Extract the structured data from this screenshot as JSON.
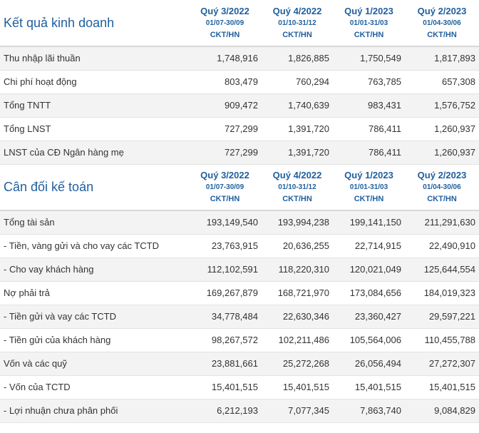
{
  "sections": [
    {
      "title": "Kết quả kinh doanh",
      "periods": [
        {
          "quarter": "Quý 3/2022",
          "range": "01/07-30/09",
          "basis": "CKT/HN"
        },
        {
          "quarter": "Quý 4/2022",
          "range": "01/10-31/12",
          "basis": "CKT/HN"
        },
        {
          "quarter": "Quý 1/2023",
          "range": "01/01-31/03",
          "basis": "CKT/HN"
        },
        {
          "quarter": "Quý 2/2023",
          "range": "01/04-30/06",
          "basis": "CKT/HN"
        }
      ],
      "rows": [
        {
          "label": "Thu nhập lãi thuần",
          "values": [
            "1,748,916",
            "1,826,885",
            "1,750,549",
            "1,817,893"
          ]
        },
        {
          "label": "Chi phí hoạt động",
          "values": [
            "803,479",
            "760,294",
            "763,785",
            "657,308"
          ]
        },
        {
          "label": "Tổng TNTT",
          "values": [
            "909,472",
            "1,740,639",
            "983,431",
            "1,576,752"
          ]
        },
        {
          "label": "Tổng LNST",
          "values": [
            "727,299",
            "1,391,720",
            "786,411",
            "1,260,937"
          ]
        },
        {
          "label": "LNST của CĐ Ngân hàng mẹ",
          "values": [
            "727,299",
            "1,391,720",
            "786,411",
            "1,260,937"
          ]
        }
      ]
    },
    {
      "title": "Cân đối kế toán",
      "periods": [
        {
          "quarter": "Quý 3/2022",
          "range": "01/07-30/09",
          "basis": "CKT/HN"
        },
        {
          "quarter": "Quý 4/2022",
          "range": "01/10-31/12",
          "basis": "CKT/HN"
        },
        {
          "quarter": "Quý 1/2023",
          "range": "01/01-31/03",
          "basis": "CKT/HN"
        },
        {
          "quarter": "Quý 2/2023",
          "range": "01/04-30/06",
          "basis": "CKT/HN"
        }
      ],
      "rows": [
        {
          "label": "Tổng tài sản",
          "values": [
            "193,149,540",
            "193,994,238",
            "199,141,150",
            "211,291,630"
          ]
        },
        {
          "label": "- Tiền, vàng gửi và cho vay các TCTD",
          "values": [
            "23,763,915",
            "20,636,255",
            "22,714,915",
            "22,490,910"
          ]
        },
        {
          "label": "- Cho vay khách hàng",
          "values": [
            "112,102,591",
            "118,220,310",
            "120,021,049",
            "125,644,554"
          ]
        },
        {
          "label": "Nợ phải trả",
          "values": [
            "169,267,879",
            "168,721,970",
            "173,084,656",
            "184,019,323"
          ]
        },
        {
          "label": "- Tiền gửi và vay các TCTD",
          "values": [
            "34,778,484",
            "22,630,346",
            "23,360,427",
            "29,597,221"
          ]
        },
        {
          "label": "- Tiền gửi của khách hàng",
          "values": [
            "98,267,572",
            "102,211,486",
            "105,564,006",
            "110,455,788"
          ]
        },
        {
          "label": "Vốn và các quỹ",
          "values": [
            "23,881,661",
            "25,272,268",
            "26,056,494",
            "27,272,307"
          ]
        },
        {
          "label": "- Vốn của TCTD",
          "values": [
            "15,401,515",
            "15,401,515",
            "15,401,515",
            "15,401,515"
          ]
        },
        {
          "label": "- Lợi nhuận chưa phân phối",
          "values": [
            "6,212,193",
            "7,077,345",
            "7,863,740",
            "9,084,829"
          ]
        }
      ]
    }
  ]
}
